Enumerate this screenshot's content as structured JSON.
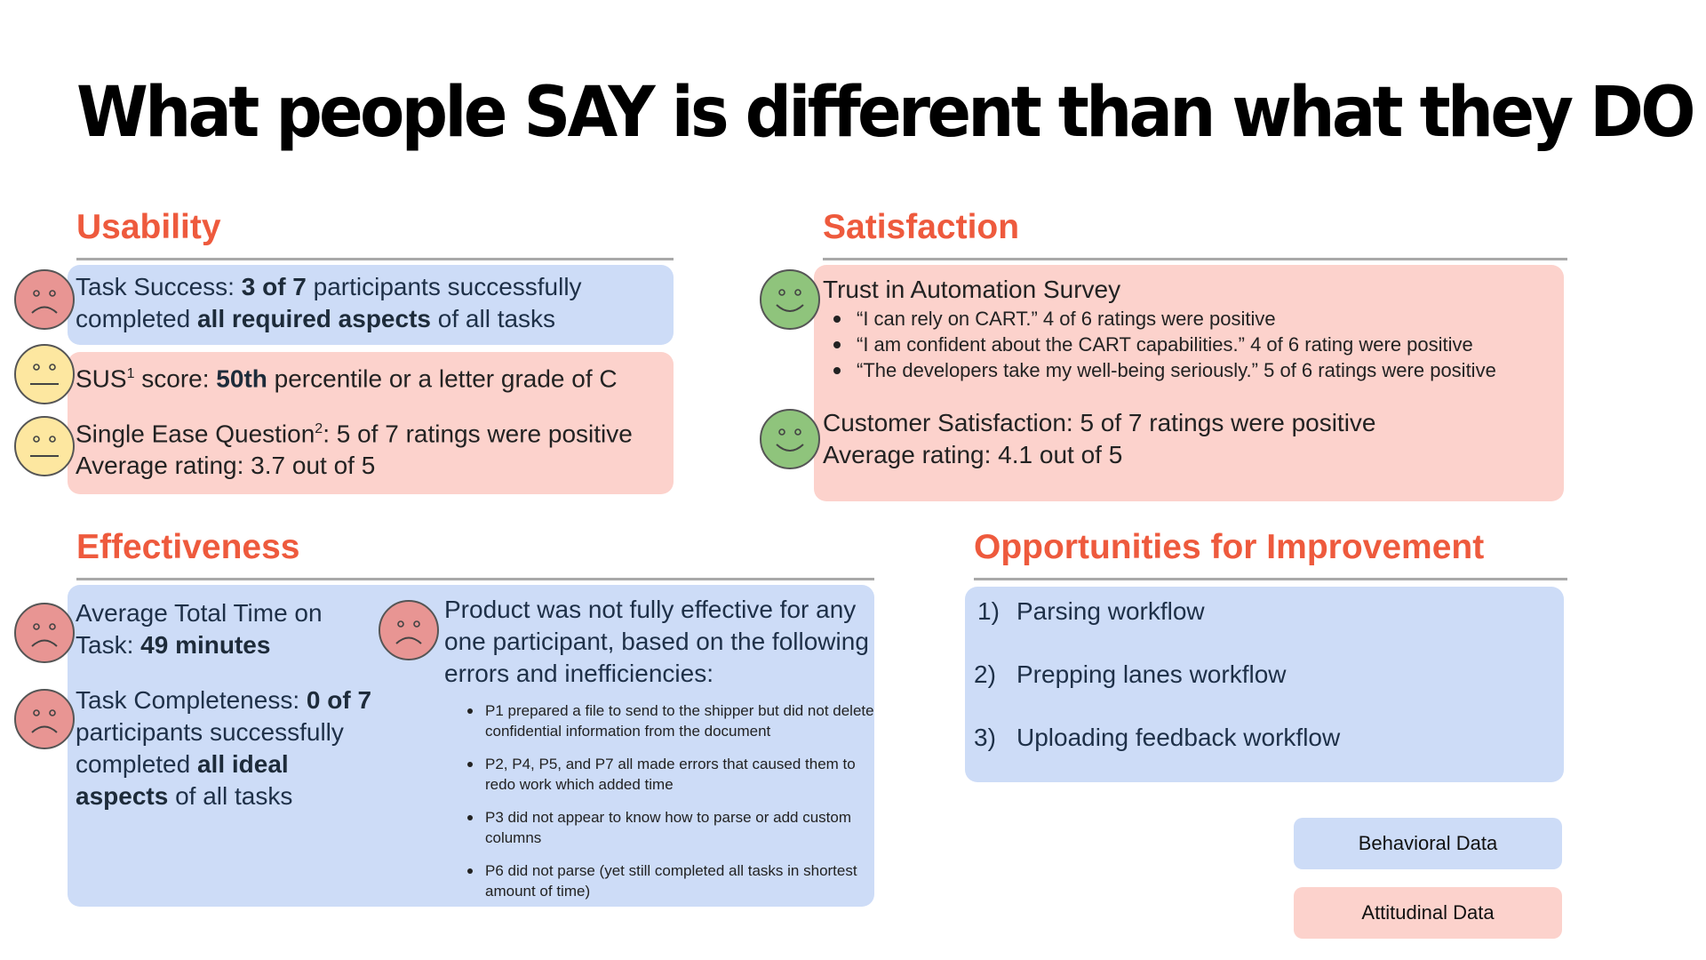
{
  "title": "What people SAY is different than what they DO",
  "usability": {
    "heading": "Usability",
    "task_success": {
      "prefix": "Task Success: ",
      "bold1": "3 of 7",
      "mid": " participants successfully completed ",
      "bold2": "all required aspects",
      "suffix": " of all tasks"
    },
    "sus": {
      "prefix": "SUS",
      "sup": "1",
      "mid": " score: ",
      "bold": "50th",
      "suffix": " percentile or a letter grade of C"
    },
    "seq": {
      "prefix": "Single Ease Question",
      "sup": "2",
      "suffix": ": 5 of 7 ratings were positive",
      "line2": "Average rating: 3.7 out of 5"
    }
  },
  "satisfaction": {
    "heading": "Satisfaction",
    "trust": {
      "heading": "Trust in Automation Survey",
      "items": [
        "“I can rely on CART.” 4 of 6 ratings were positive",
        "“I am confident about the CART capabilities.” 4 of 6 rating were positive",
        "“The developers take my well-being seriously.” 5 of 6 ratings were positive"
      ]
    },
    "customer": {
      "line1": "Customer Satisfaction: 5 of 7 ratings were positive",
      "line2": "Average rating: 4.1 out of 5"
    }
  },
  "effectiveness": {
    "heading": "Effectiveness",
    "time": {
      "prefix": "Average Total Time on Task: ",
      "bold": "49 minutes"
    },
    "completeness": {
      "prefix": "Task Completeness: ",
      "bold1": "0 of 7",
      "mid": " participants successfully completed ",
      "bold2": "all ideal aspects",
      "suffix": " of all tasks"
    },
    "product": {
      "text": "Product was not fully effective for any one participant, based on the following errors and inefficiencies:",
      "items": [
        "P1 prepared a file to send to the shipper but did not delete confidential information from the document",
        "P2, P4, P5, and P7 all made errors that caused them to redo work which added time",
        "P3 did not appear to know how to parse or add custom columns",
        "P6 did not parse (yet still completed all tasks in shortest amount of time)"
      ]
    }
  },
  "opportunities": {
    "heading": "Opportunities for Improvement",
    "items": [
      {
        "num": "1)",
        "text": "Parsing workflow"
      },
      {
        "num": "2)",
        "text": "Prepping lanes workflow"
      },
      {
        "num": "3)",
        "text": "Uploading feedback workflow"
      }
    ]
  },
  "legend": {
    "behavioral": "Behavioral Data",
    "attitudinal": "Attitudinal Data"
  },
  "colors": {
    "heading": "#ee5a3d",
    "behavioral_fill": "#cddcf7",
    "attitudinal_fill": "#fcd2cc",
    "sad_face": "#e89593",
    "neutral_face": "#fde7a0",
    "happy_face": "#8fc47c"
  },
  "icons": [
    "sad-face-icon",
    "neutral-face-icon",
    "happy-face-icon"
  ]
}
